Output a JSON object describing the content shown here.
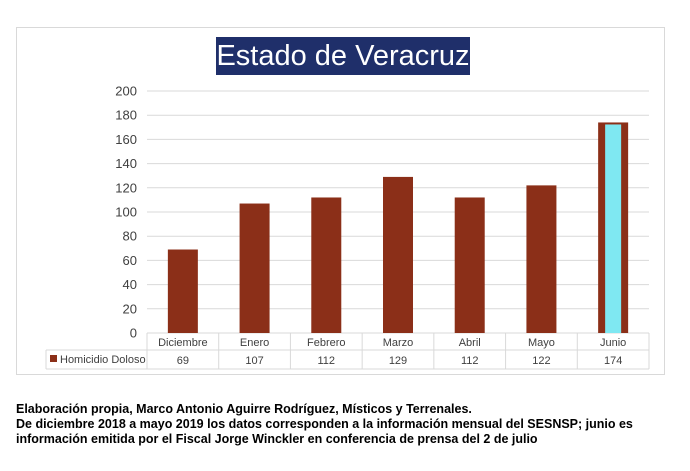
{
  "chart_data": {
    "type": "bar",
    "title": "Estado de Veracruz",
    "categories": [
      "Diciembre",
      "Enero",
      "Febrero",
      "Marzo",
      "Abril",
      "Mayo",
      "Junio"
    ],
    "series": [
      {
        "name": "Homicidio Doloso",
        "values": [
          69,
          107,
          112,
          129,
          112,
          122,
          174
        ],
        "value_labels": [
          "69",
          "107",
          "112",
          "129",
          "112",
          "122",
          "174"
        ]
      }
    ],
    "ylim": [
      0,
      200
    ],
    "y_ticks": [
      0,
      20,
      40,
      60,
      80,
      100,
      120,
      140,
      160,
      180,
      200
    ],
    "y_tick_labels": [
      "0",
      "20",
      "40",
      "60",
      "80",
      "100",
      "120",
      "140",
      "160",
      "180",
      "200"
    ],
    "grid": true,
    "legend_placement": "data-table-below",
    "colors": {
      "bar": "#8b2f18",
      "highlight_fill": "#7fe8f2",
      "title_bg": "#1f2f6a",
      "grid": "#d9d9d9"
    },
    "highlight_category": "Junio"
  },
  "footnote": {
    "line1": "Elaboración propia, Marco Antonio Aguirre Rodríguez, Místicos y Terrenales.",
    "line2": "De diciembre 2018 a mayo 2019 los datos corresponden a la información mensual del SESNSP; junio es",
    "line3": "información emitida por el Fiscal Jorge Winckler en conferencia de prensa del 2 de julio"
  }
}
